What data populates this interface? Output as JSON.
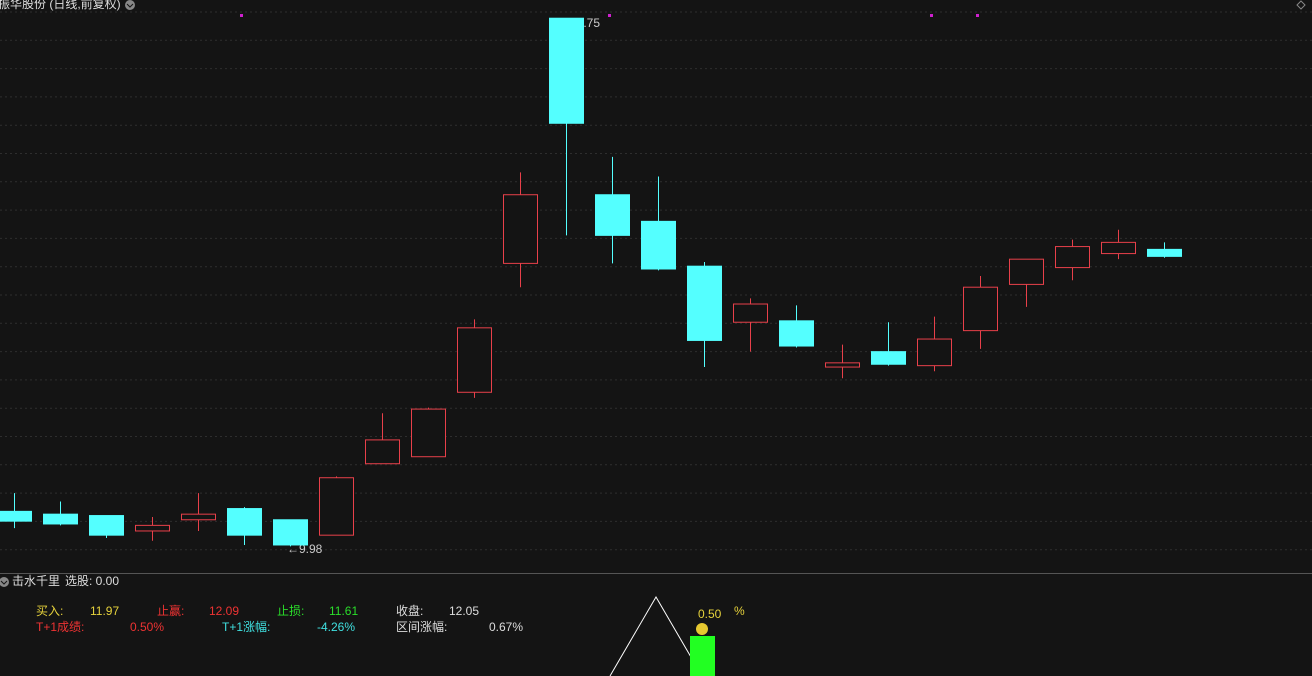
{
  "chart_data": {
    "type": "candlestick",
    "title": "振华股份 (日线,前复权)",
    "open": [
      10.23,
      10.21,
      10.2,
      10.09,
      10.17,
      10.25,
      10.17,
      10.06,
      10.57,
      10.62,
      11.08,
      12.0,
      13.75,
      12.49,
      12.3,
      11.98,
      11.58,
      11.59,
      11.26,
      11.37,
      11.27,
      11.52,
      11.85,
      11.97,
      12.07,
      12.1
    ],
    "high": [
      10.36,
      10.3,
      10.2,
      10.19,
      10.36,
      10.26,
      10.17,
      10.48,
      10.93,
      10.97,
      11.6,
      12.65,
      13.75,
      12.76,
      12.62,
      12.01,
      11.75,
      11.7,
      11.42,
      11.58,
      11.62,
      11.91,
      12.03,
      12.17,
      12.24,
      12.15
    ],
    "low": [
      10.11,
      10.13,
      10.04,
      10.02,
      10.09,
      9.99,
      9.98,
      10.06,
      10.57,
      10.62,
      11.04,
      11.83,
      12.2,
      12.0,
      11.95,
      11.26,
      11.37,
      11.4,
      11.18,
      11.27,
      11.23,
      11.39,
      11.69,
      11.88,
      12.03,
      12.04
    ],
    "close": [
      10.16,
      10.14,
      10.06,
      10.13,
      10.21,
      10.06,
      9.99,
      10.47,
      10.74,
      10.96,
      11.54,
      12.49,
      13.0,
      12.2,
      11.96,
      11.45,
      11.71,
      11.41,
      11.29,
      11.28,
      11.46,
      11.83,
      12.03,
      12.12,
      12.15,
      12.05
    ],
    "ylim": [
      9.79,
      13.88
    ],
    "up_color": "#e8404a",
    "down_color": "#54ffff",
    "max_label": "13.75",
    "min_label": "←9.98"
  },
  "indicator": {
    "name": "击水千里",
    "pick": "选股: 0.00",
    "rows": [
      [
        [
          "买入:",
          "11.97"
        ],
        [
          "止赢:",
          "12.09"
        ],
        [
          "止损:",
          "11.61"
        ],
        [
          "收盘:",
          "12.05"
        ]
      ],
      [
        [
          "T+1成绩:",
          "0.50%"
        ],
        [
          "T+1涨幅:",
          "-4.26%"
        ],
        [
          "区间涨幅:",
          "0.67%"
        ]
      ]
    ],
    "bar_label": "0.50",
    "bar_unit": "%"
  }
}
